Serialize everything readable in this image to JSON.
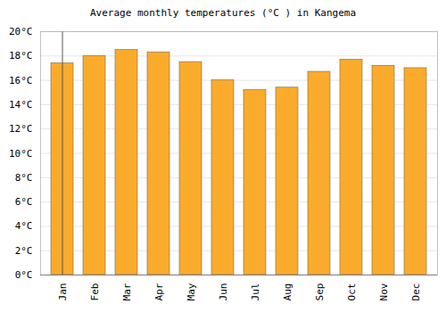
{
  "chart_data": {
    "type": "bar",
    "title": "Average monthly temperatures (°C ) in Kangema",
    "categories": [
      "Jan",
      "Feb",
      "Mar",
      "Apr",
      "May",
      "Jun",
      "Jul",
      "Aug",
      "Sep",
      "Oct",
      "Nov",
      "Dec"
    ],
    "values": [
      17.4,
      18.0,
      18.5,
      18.3,
      17.5,
      16.0,
      15.2,
      15.4,
      16.7,
      17.7,
      17.2,
      17.0
    ],
    "color": "#fbab2b",
    "ylim": [
      0,
      20
    ],
    "yticks": [
      {
        "value": 0,
        "label": "0°C"
      },
      {
        "value": 2,
        "label": "2°C"
      },
      {
        "value": 4,
        "label": "4°C"
      },
      {
        "value": 6,
        "label": "6°C"
      },
      {
        "value": 8,
        "label": "8°C"
      },
      {
        "value": 10,
        "label": "10°C"
      },
      {
        "value": 12,
        "label": "12°C"
      },
      {
        "value": 14,
        "label": "14°C"
      },
      {
        "value": 16,
        "label": "16°C"
      },
      {
        "value": 18,
        "label": "18°C"
      },
      {
        "value": 20,
        "label": "20°C"
      }
    ],
    "grid": true
  }
}
